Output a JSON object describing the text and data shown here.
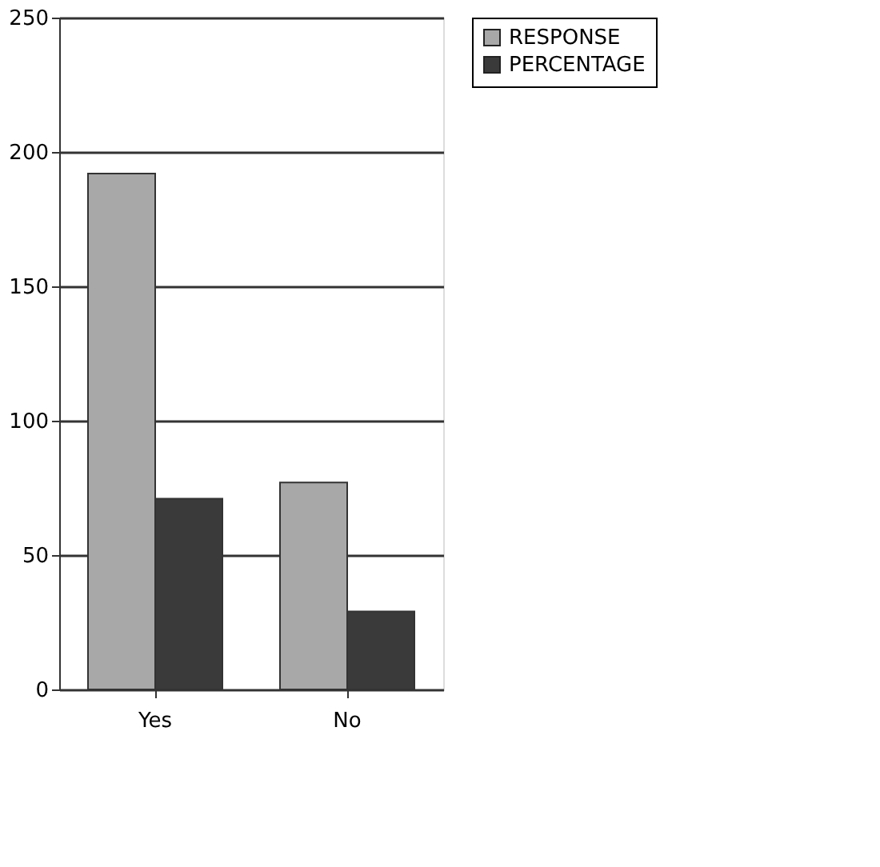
{
  "chart_data": {
    "type": "bar",
    "categories": [
      "Yes",
      "No"
    ],
    "series": [
      {
        "name": "RESPONSE",
        "color": "#a8a8a8",
        "values": [
          192,
          77
        ]
      },
      {
        "name": "PERCENTAGE",
        "color": "#3a3a3a",
        "values": [
          71,
          29
        ]
      }
    ],
    "ylim": [
      0,
      250
    ],
    "yticks": [
      0,
      50,
      100,
      150,
      200,
      250
    ],
    "grid": "y",
    "legend": "right"
  }
}
